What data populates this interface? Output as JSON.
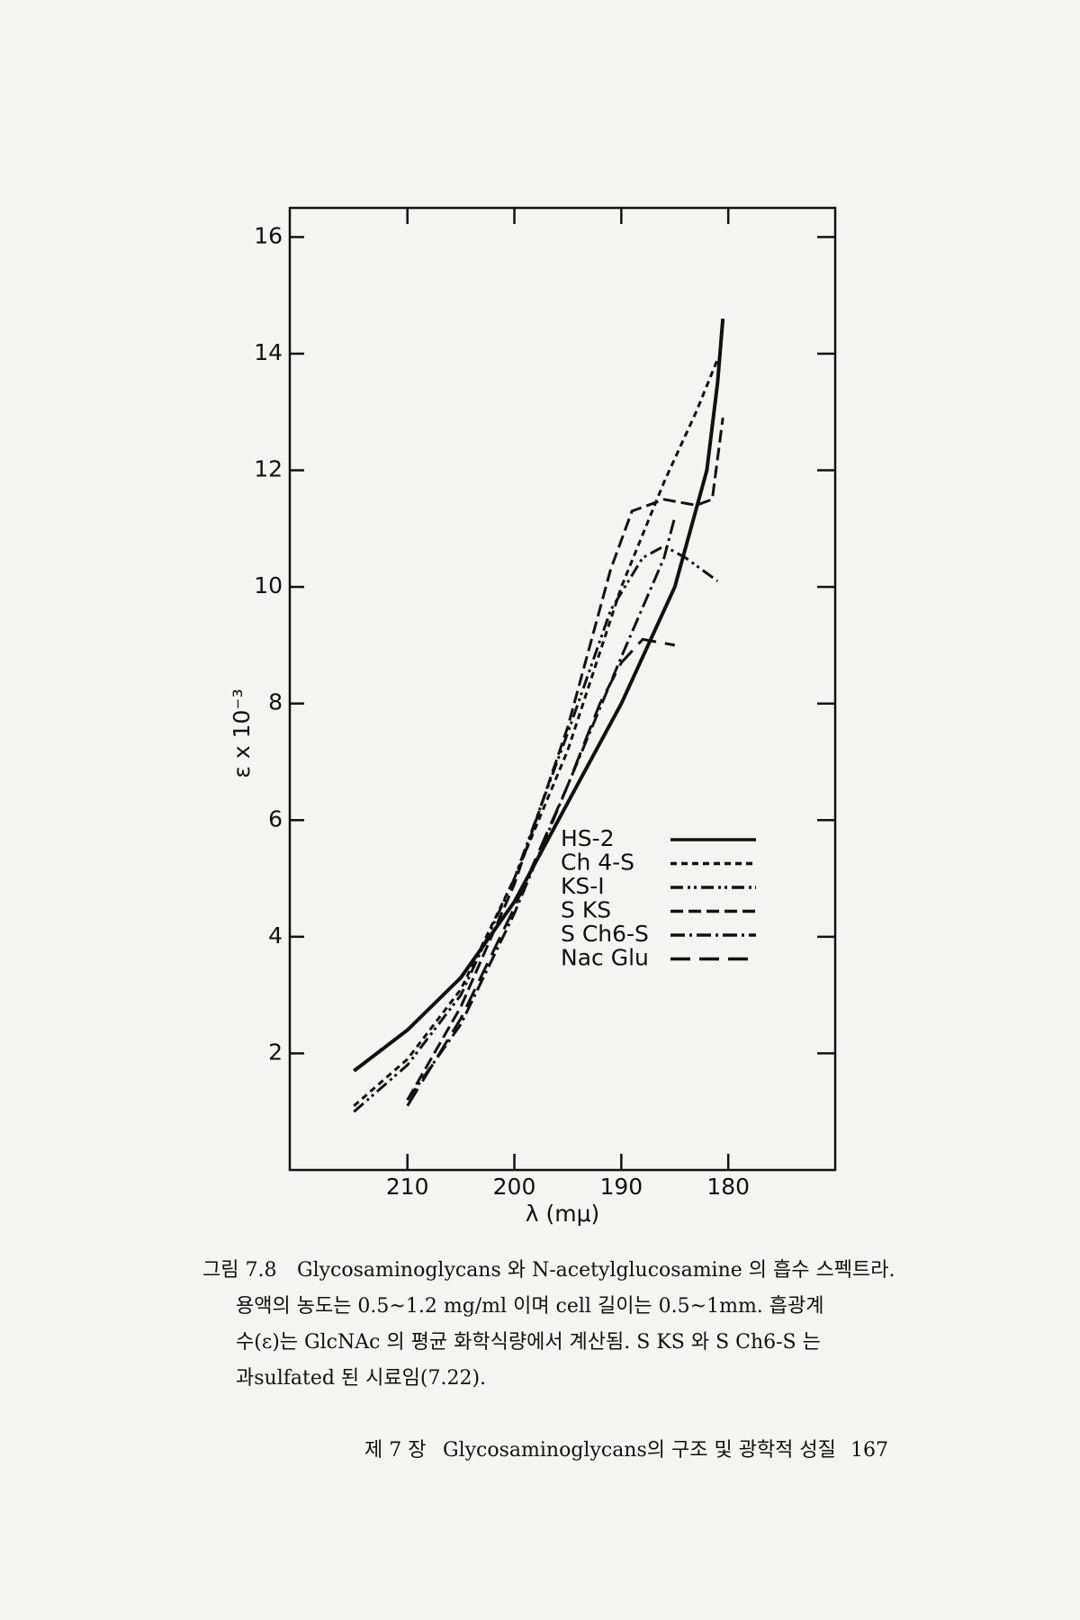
{
  "chart_data": {
    "type": "line",
    "y_label": "ε x 10⁻³",
    "x_label": "λ (mμ)",
    "xlim": [
      221,
      170
    ],
    "xticks": [
      210,
      200,
      190,
      180
    ],
    "ylim": [
      0,
      16.5
    ],
    "yticks": [
      2,
      4,
      6,
      8,
      10,
      12,
      14,
      16
    ],
    "series": [
      {
        "name": "HS-2",
        "color": "#111111",
        "x": [
          215,
          210,
          205,
          200,
          195,
          190,
          185,
          182,
          181,
          180.5
        ],
        "values": [
          1.7,
          2.4,
          3.3,
          4.6,
          6.3,
          8.0,
          10.0,
          12.0,
          13.5,
          14.6
        ]
      },
      {
        "name": "Ch 4-S",
        "color": "#111111",
        "x": [
          215,
          210,
          205,
          200,
          195,
          190,
          186,
          183,
          181
        ],
        "values": [
          1.1,
          1.9,
          3.1,
          5.0,
          7.2,
          10.0,
          11.8,
          13.0,
          13.9
        ]
      },
      {
        "name": "KS-I",
        "color": "#111111",
        "x": [
          215,
          210,
          205,
          200,
          195,
          191,
          188,
          186,
          184,
          181
        ],
        "values": [
          1.0,
          1.8,
          3.0,
          5.0,
          7.5,
          9.6,
          10.5,
          10.7,
          10.5,
          10.1
        ]
      },
      {
        "name": "S KS",
        "color": "#111111",
        "x": [
          210,
          205,
          200,
          195,
          191,
          189,
          186,
          183,
          181.5,
          180.5
        ],
        "values": [
          1.2,
          2.8,
          4.9,
          7.6,
          10.3,
          11.3,
          11.5,
          11.4,
          11.5,
          12.9
        ]
      },
      {
        "name": "S Ch6-S",
        "color": "#111111",
        "x": [
          210,
          205,
          200,
          195,
          190,
          186,
          185
        ],
        "values": [
          1.2,
          2.5,
          4.4,
          6.6,
          8.8,
          10.5,
          11.2
        ]
      },
      {
        "name": "Nac Glu",
        "color": "#111111",
        "x": [
          210,
          205,
          200,
          195,
          192,
          190,
          188,
          185
        ],
        "values": [
          1.1,
          2.6,
          4.5,
          6.6,
          8.0,
          8.7,
          9.1,
          9.0
        ]
      }
    ]
  },
  "caption": {
    "label": "그림 7.8",
    "lines": [
      "Glycosaminoglycans 와 N-acetylglucosamine 의 흡수 스펙트라.",
      "용액의 농도는 0.5~1.2 mg/ml 이며 cell 길이는 0.5~1mm. 흡광계",
      "수(ε)는 GlcNAc 의 평균 화학식량에서 계산됨. S KS 와 S Ch6-S 는",
      "과sulfated 된 시료임(7.22)."
    ]
  },
  "footer": {
    "chapter": "제 7 장",
    "title": "Glycosaminoglycans의 구조 및 광학적 성질",
    "page": "167"
  }
}
